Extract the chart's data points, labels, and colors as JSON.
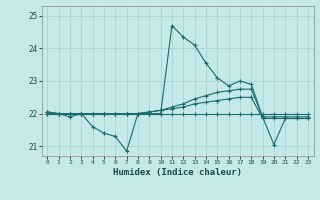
{
  "title": "",
  "xlabel": "Humidex (Indice chaleur)",
  "ylabel": "",
  "bg_color": "#c5e8e8",
  "grid_color": "#a8d4d4",
  "line_color": "#1a6b6b",
  "xlim": [
    -0.5,
    23.5
  ],
  "ylim": [
    20.7,
    25.3
  ],
  "yticks": [
    21,
    22,
    23,
    24,
    25
  ],
  "xticks": [
    0,
    1,
    2,
    3,
    4,
    5,
    6,
    7,
    8,
    9,
    10,
    11,
    12,
    13,
    14,
    15,
    16,
    17,
    18,
    19,
    20,
    21,
    22,
    23
  ],
  "series": [
    {
      "x": [
        0,
        1,
        2,
        3,
        4,
        5,
        6,
        7,
        8,
        9,
        10,
        11,
        12,
        13,
        14,
        15,
        16,
        17,
        18,
        19,
        20,
        21,
        22,
        23
      ],
      "y": [
        22.0,
        22.0,
        21.9,
        22.0,
        21.6,
        21.4,
        21.3,
        20.85,
        22.0,
        22.0,
        22.0,
        24.7,
        24.35,
        24.1,
        23.55,
        23.1,
        22.85,
        23.0,
        22.9,
        21.9,
        21.05,
        21.85,
        21.85,
        21.85
      ]
    },
    {
      "x": [
        0,
        1,
        2,
        3,
        4,
        5,
        6,
        7,
        8,
        9,
        10,
        11,
        12,
        13,
        14,
        15,
        16,
        17,
        18,
        19,
        20,
        21,
        22,
        23
      ],
      "y": [
        22.0,
        22.0,
        22.0,
        22.0,
        22.0,
        22.0,
        22.0,
        22.0,
        22.0,
        22.0,
        22.0,
        22.0,
        22.0,
        22.0,
        22.0,
        22.0,
        22.0,
        22.0,
        22.0,
        22.0,
        22.0,
        22.0,
        22.0,
        22.0
      ]
    },
    {
      "x": [
        0,
        1,
        2,
        3,
        4,
        5,
        6,
        7,
        8,
        9,
        10,
        11,
        12,
        13,
        14,
        15,
        16,
        17,
        18,
        19,
        20,
        21,
        22,
        23
      ],
      "y": [
        22.05,
        22.0,
        22.0,
        22.0,
        22.0,
        22.0,
        22.0,
        22.0,
        22.0,
        22.05,
        22.1,
        22.2,
        22.3,
        22.45,
        22.55,
        22.65,
        22.7,
        22.75,
        22.75,
        21.9,
        21.9,
        21.9,
        21.9,
        21.9
      ]
    },
    {
      "x": [
        0,
        1,
        2,
        3,
        4,
        5,
        6,
        7,
        8,
        9,
        10,
        11,
        12,
        13,
        14,
        15,
        16,
        17,
        18,
        19,
        20,
        21,
        22,
        23
      ],
      "y": [
        22.05,
        22.0,
        22.0,
        22.0,
        22.0,
        22.0,
        22.0,
        22.0,
        22.0,
        22.05,
        22.1,
        22.15,
        22.2,
        22.3,
        22.35,
        22.4,
        22.45,
        22.5,
        22.5,
        21.85,
        21.85,
        21.85,
        21.85,
        21.85
      ]
    }
  ]
}
